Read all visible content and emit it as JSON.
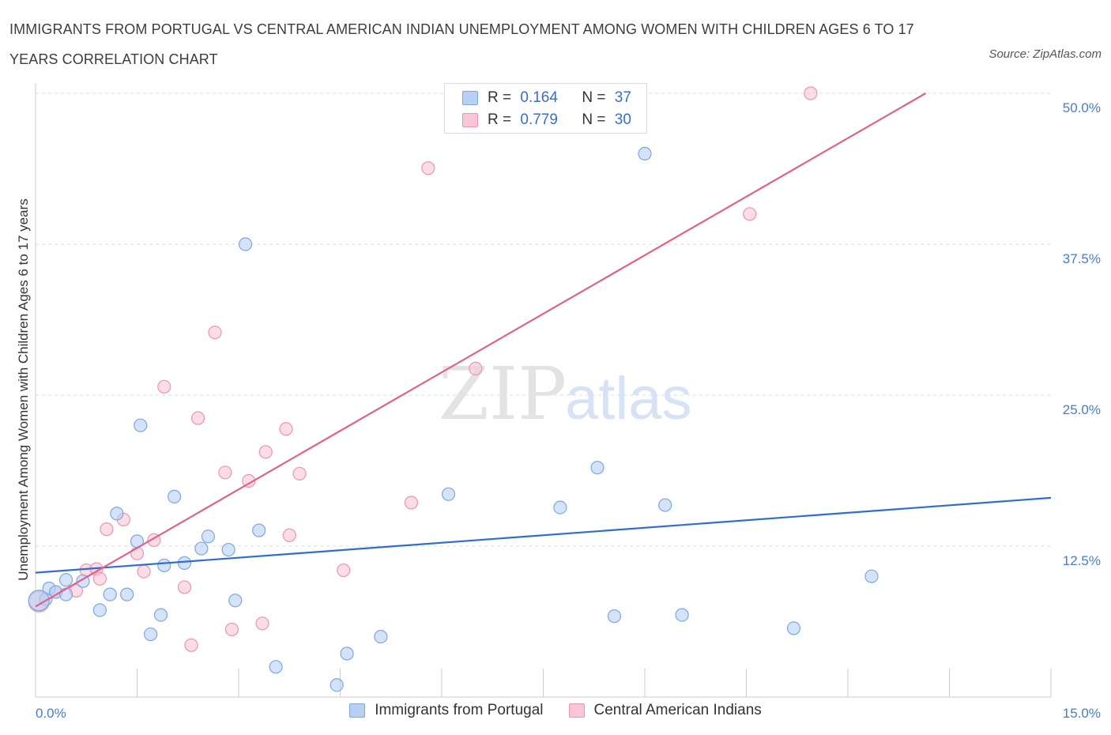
{
  "title": "IMMIGRANTS FROM PORTUGAL VS CENTRAL AMERICAN INDIAN UNEMPLOYMENT AMONG WOMEN WITH CHILDREN AGES 6 TO 17 YEARS CORRELATION CHART",
  "source": "Source: ZipAtlas.com",
  "watermark": {
    "zip": "ZIP",
    "atlas": "atlas"
  },
  "legend": {
    "r_label": "R =",
    "n_label": "N =",
    "series": [
      {
        "r": "0.164",
        "n": "37"
      },
      {
        "r": "0.779",
        "n": "30"
      }
    ]
  },
  "colors": {
    "blue_fill": "#b8d0f4",
    "blue_stroke": "#7ea7e0",
    "blue_line": "#2f6fcc",
    "pink_fill": "#f9c6d6",
    "pink_stroke": "#eb95b1",
    "pink_line": "#e0618d",
    "grid": "#dcdcdc",
    "tick_text": "#4a7cc9"
  },
  "chart_data": {
    "type": "scatter",
    "ylabel": "Unemployment Among Women with Children Ages 6 to 17 years",
    "xlim": [
      0,
      15
    ],
    "ylim": [
      0,
      50
    ],
    "x_ticks": [
      "0.0%",
      "15.0%"
    ],
    "y_ticks": [
      {
        "value": 12.5,
        "label": "12.5%"
      },
      {
        "value": 25.0,
        "label": "25.0%"
      },
      {
        "value": 37.5,
        "label": "37.5%"
      },
      {
        "value": 50.0,
        "label": "50.0%"
      }
    ],
    "legend_position": "bottom",
    "series": [
      {
        "name": "Immigrants from Portugal",
        "color": "blue",
        "points": [
          [
            0.15,
            8.1
          ],
          [
            0.2,
            9.0
          ],
          [
            0.3,
            8.7
          ],
          [
            0.45,
            8.5
          ],
          [
            0.45,
            9.7
          ],
          [
            0.7,
            9.6
          ],
          [
            0.95,
            7.2
          ],
          [
            1.1,
            8.5
          ],
          [
            1.35,
            8.5
          ],
          [
            1.2,
            15.2
          ],
          [
            1.5,
            12.9
          ],
          [
            1.55,
            22.5
          ],
          [
            1.7,
            5.2
          ],
          [
            1.85,
            6.8
          ],
          [
            1.9,
            10.9
          ],
          [
            2.05,
            16.6
          ],
          [
            2.2,
            11.1
          ],
          [
            2.45,
            12.3
          ],
          [
            2.55,
            13.3
          ],
          [
            2.85,
            12.2
          ],
          [
            2.95,
            8.0
          ],
          [
            3.1,
            37.5
          ],
          [
            3.3,
            13.8
          ],
          [
            3.55,
            2.5
          ],
          [
            4.45,
            1.0
          ],
          [
            4.6,
            3.6
          ],
          [
            5.1,
            5.0
          ],
          [
            6.1,
            16.8
          ],
          [
            7.75,
            15.7
          ],
          [
            8.3,
            19.0
          ],
          [
            8.55,
            6.7
          ],
          [
            9.0,
            45.0
          ],
          [
            9.3,
            15.9
          ],
          [
            9.55,
            6.8
          ],
          [
            11.2,
            5.7
          ],
          [
            12.35,
            10.0
          ],
          [
            0.05,
            8.0
          ]
        ]
      },
      {
        "name": "Central American Indians",
        "color": "pink",
        "points": [
          [
            0.05,
            7.9
          ],
          [
            0.3,
            8.7
          ],
          [
            0.6,
            8.8
          ],
          [
            0.75,
            10.5
          ],
          [
            0.9,
            10.6
          ],
          [
            0.95,
            9.8
          ],
          [
            1.05,
            13.9
          ],
          [
            1.3,
            14.7
          ],
          [
            1.5,
            11.9
          ],
          [
            1.6,
            10.4
          ],
          [
            1.75,
            13.0
          ],
          [
            1.9,
            25.7
          ],
          [
            2.2,
            9.1
          ],
          [
            2.3,
            4.3
          ],
          [
            2.4,
            23.1
          ],
          [
            2.65,
            30.2
          ],
          [
            2.8,
            18.6
          ],
          [
            2.9,
            5.6
          ],
          [
            3.15,
            17.9
          ],
          [
            3.35,
            6.1
          ],
          [
            3.4,
            20.3
          ],
          [
            3.7,
            22.2
          ],
          [
            3.75,
            13.4
          ],
          [
            3.9,
            18.5
          ],
          [
            4.55,
            10.5
          ],
          [
            5.55,
            16.1
          ],
          [
            5.8,
            43.8
          ],
          [
            6.5,
            27.2
          ],
          [
            10.55,
            40.0
          ],
          [
            11.45,
            50.0
          ]
        ]
      }
    ],
    "trendlines": [
      {
        "series": "Immigrants from Portugal",
        "from": [
          0,
          10.3
        ],
        "to": [
          15,
          16.5
        ]
      },
      {
        "series": "Central American Indians",
        "from": [
          0,
          7.5
        ],
        "to": [
          13.15,
          50.0
        ]
      }
    ]
  }
}
